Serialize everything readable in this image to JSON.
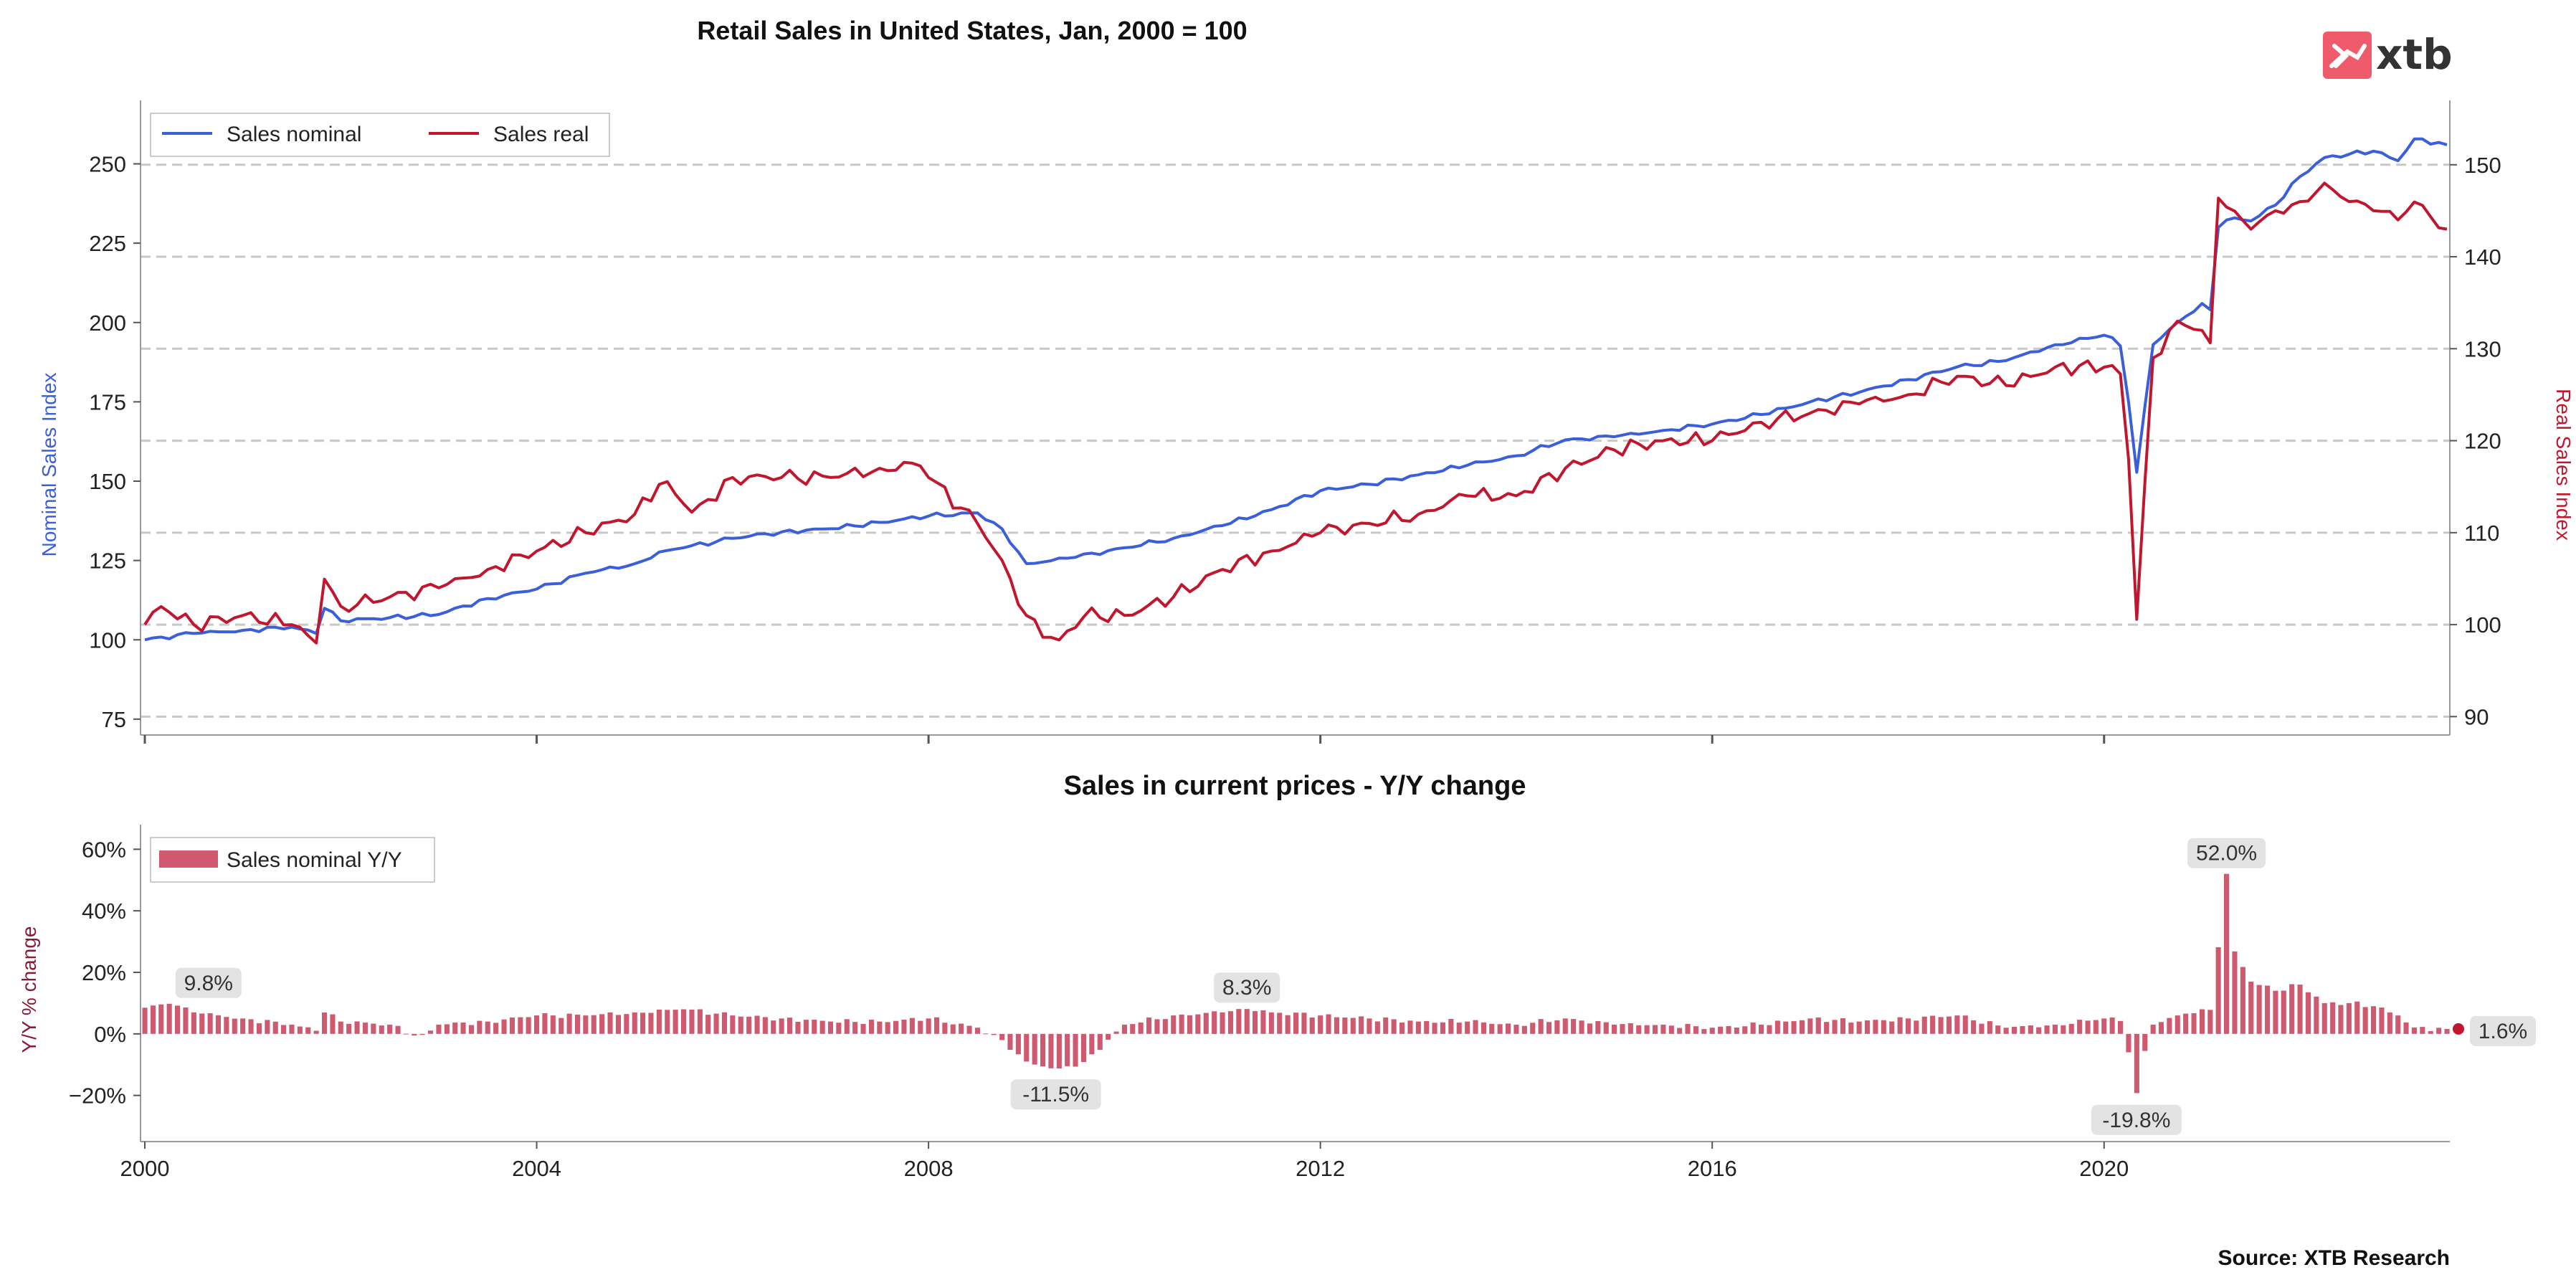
{
  "header": {
    "logo_text": "xtb"
  },
  "footer": {
    "source": "Source: XTB Research"
  },
  "chart_data": [
    {
      "type": "line",
      "title": "Retail Sales in United States, Jan, 2000 = 100",
      "ylabel_left": "Nominal Sales Index",
      "ylabel_right": "Real Sales Index",
      "left_axis": {
        "ylim": [
          70,
          270
        ],
        "ticks": [
          75,
          100,
          125,
          150,
          175,
          200,
          225,
          250
        ]
      },
      "right_axis": {
        "ylim": [
          88,
          157
        ],
        "ticks": [
          90,
          100,
          110,
          120,
          130,
          140,
          150
        ]
      },
      "x_start": "2000-01",
      "x_end": "2023-06",
      "x_ticks": [
        2000,
        2004,
        2008,
        2012,
        2016,
        2020
      ],
      "grid": "horizontal dashed",
      "legend": {
        "position": "top-left",
        "entries": [
          "Sales nominal",
          "Sales real"
        ]
      },
      "colors": {
        "nominal": "#3b5fd9",
        "real": "#c0172f"
      },
      "series": [
        {
          "name": "Sales nominal",
          "axis": "left",
          "interval": "monthly",
          "anchors": [
            [
              2000.0,
              100
            ],
            [
              2000.5,
              102
            ],
            [
              2001.0,
              103
            ],
            [
              2001.5,
              104
            ],
            [
              2001.75,
              102
            ],
            [
              2001.83,
              110
            ],
            [
              2002.0,
              106
            ],
            [
              2002.5,
              107
            ],
            [
              2003.0,
              108
            ],
            [
              2003.5,
              113
            ],
            [
              2004.0,
              116
            ],
            [
              2004.5,
              121
            ],
            [
              2005.0,
              124
            ],
            [
              2005.3,
              128
            ],
            [
              2005.5,
              129
            ],
            [
              2006.0,
              132
            ],
            [
              2006.5,
              134
            ],
            [
              2007.0,
              135
            ],
            [
              2007.5,
              137
            ],
            [
              2008.0,
              139
            ],
            [
              2008.5,
              140
            ],
            [
              2008.75,
              135
            ],
            [
              2009.0,
              124
            ],
            [
              2009.5,
              126
            ],
            [
              2010.0,
              129
            ],
            [
              2010.5,
              132
            ],
            [
              2011.0,
              136
            ],
            [
              2011.5,
              141
            ],
            [
              2012.0,
              147
            ],
            [
              2012.5,
              149
            ],
            [
              2013.0,
              152
            ],
            [
              2013.5,
              155
            ],
            [
              2014.0,
              158
            ],
            [
              2014.5,
              163
            ],
            [
              2015.0,
              164
            ],
            [
              2015.5,
              166
            ],
            [
              2016.0,
              168
            ],
            [
              2016.5,
              171
            ],
            [
              2017.0,
              175
            ],
            [
              2017.5,
              178
            ],
            [
              2018.0,
              182
            ],
            [
              2018.5,
              186
            ],
            [
              2019.0,
              188
            ],
            [
              2019.5,
              193
            ],
            [
              2020.0,
              196
            ],
            [
              2020.16,
              194
            ],
            [
              2020.25,
              175
            ],
            [
              2020.33,
              152
            ],
            [
              2020.5,
              193
            ],
            [
              2020.75,
              200
            ],
            [
              2021.0,
              206
            ],
            [
              2021.08,
              203
            ],
            [
              2021.17,
              231
            ],
            [
              2021.33,
              233
            ],
            [
              2021.5,
              232
            ],
            [
              2021.75,
              237
            ],
            [
              2022.0,
              246
            ],
            [
              2022.25,
              252
            ],
            [
              2022.5,
              253
            ],
            [
              2022.75,
              254
            ],
            [
              2023.0,
              251
            ],
            [
              2023.17,
              258
            ],
            [
              2023.5,
              256
            ]
          ]
        },
        {
          "name": "Sales real",
          "axis": "right",
          "interval": "monthly",
          "anchors": [
            [
              2000.0,
              100
            ],
            [
              2000.17,
              102
            ],
            [
              2000.5,
              100
            ],
            [
              2001.0,
              101
            ],
            [
              2001.5,
              100
            ],
            [
              2001.75,
              98
            ],
            [
              2001.83,
              105
            ],
            [
              2002.0,
              102
            ],
            [
              2002.5,
              103
            ],
            [
              2003.0,
              104
            ],
            [
              2003.5,
              106
            ],
            [
              2004.0,
              108
            ],
            [
              2004.5,
              110
            ],
            [
              2005.0,
              112
            ],
            [
              2005.3,
              116
            ],
            [
              2005.6,
              112
            ],
            [
              2006.0,
              116
            ],
            [
              2006.5,
              116
            ],
            [
              2007.0,
              116
            ],
            [
              2007.5,
              117
            ],
            [
              2007.9,
              117.5
            ],
            [
              2008.0,
              116
            ],
            [
              2008.5,
              111
            ],
            [
              2008.75,
              107
            ],
            [
              2009.0,
              101
            ],
            [
              2009.3,
              98
            ],
            [
              2009.6,
              101
            ],
            [
              2010.0,
              101
            ],
            [
              2010.5,
              103
            ],
            [
              2011.0,
              106
            ],
            [
              2011.5,
              108
            ],
            [
              2012.0,
              110
            ],
            [
              2012.5,
              111
            ],
            [
              2013.0,
              112
            ],
            [
              2013.5,
              114
            ],
            [
              2014.0,
              114
            ],
            [
              2014.5,
              117
            ],
            [
              2015.0,
              119
            ],
            [
              2015.5,
              120
            ],
            [
              2016.0,
              120
            ],
            [
              2016.5,
              122
            ],
            [
              2017.0,
              123
            ],
            [
              2017.5,
              124
            ],
            [
              2018.0,
              125
            ],
            [
              2018.5,
              127
            ],
            [
              2019.0,
              126
            ],
            [
              2019.5,
              128
            ],
            [
              2020.0,
              128
            ],
            [
              2020.16,
              128
            ],
            [
              2020.25,
              118
            ],
            [
              2020.33,
              100
            ],
            [
              2020.5,
              129
            ],
            [
              2020.75,
              133
            ],
            [
              2021.0,
              132
            ],
            [
              2021.08,
              130
            ],
            [
              2021.17,
              147
            ],
            [
              2021.33,
              145
            ],
            [
              2021.5,
              143
            ],
            [
              2021.75,
              145
            ],
            [
              2022.0,
              146
            ],
            [
              2022.25,
              148
            ],
            [
              2022.5,
              146
            ],
            [
              2022.75,
              145
            ],
            [
              2023.0,
              144
            ],
            [
              2023.17,
              146
            ],
            [
              2023.5,
              143
            ]
          ]
        }
      ]
    },
    {
      "type": "bar",
      "title": "Sales in current prices - Y/Y change",
      "ylabel": "Y/Y % change",
      "ylim": [
        -35,
        68
      ],
      "y_ticks": [
        -20,
        0,
        20,
        40,
        60
      ],
      "y_tick_labels": [
        "−20%",
        "0%",
        "20%",
        "40%",
        "60%"
      ],
      "x_ticks": [
        2000,
        2004,
        2008,
        2012,
        2016,
        2020
      ],
      "legend": {
        "position": "top-left",
        "entries": [
          "Sales nominal Y/Y"
        ]
      },
      "color": "#cf5a70",
      "series": [
        {
          "name": "Sales nominal Y/Y",
          "interval": "monthly",
          "anchors": [
            [
              2000.0,
              8.5
            ],
            [
              2000.25,
              9.8
            ],
            [
              2000.5,
              7
            ],
            [
              2001.0,
              5
            ],
            [
              2001.5,
              3
            ],
            [
              2001.75,
              1
            ],
            [
              2001.83,
              7
            ],
            [
              2002.0,
              4
            ],
            [
              2002.5,
              3
            ],
            [
              2002.8,
              -1
            ],
            [
              2003.0,
              3
            ],
            [
              2003.5,
              4
            ],
            [
              2004.0,
              6
            ],
            [
              2004.5,
              6
            ],
            [
              2005.0,
              7
            ],
            [
              2005.5,
              8
            ],
            [
              2006.0,
              6
            ],
            [
              2006.5,
              5
            ],
            [
              2007.0,
              4
            ],
            [
              2007.5,
              4
            ],
            [
              2008.0,
              5
            ],
            [
              2008.5,
              2
            ],
            [
              2008.75,
              -2
            ],
            [
              2009.0,
              -9
            ],
            [
              2009.3,
              -11.5
            ],
            [
              2009.6,
              -9
            ],
            [
              2010.0,
              3
            ],
            [
              2010.5,
              6
            ],
            [
              2011.0,
              7
            ],
            [
              2011.2,
              8.3
            ],
            [
              2011.5,
              7
            ],
            [
              2012.0,
              6
            ],
            [
              2012.5,
              5
            ],
            [
              2013.0,
              4
            ],
            [
              2013.5,
              4
            ],
            [
              2014.0,
              3
            ],
            [
              2014.5,
              5
            ],
            [
              2015.0,
              3
            ],
            [
              2015.5,
              3
            ],
            [
              2016.0,
              2
            ],
            [
              2016.5,
              3
            ],
            [
              2017.0,
              5
            ],
            [
              2017.5,
              4
            ],
            [
              2018.0,
              5
            ],
            [
              2018.5,
              6
            ],
            [
              2019.0,
              2
            ],
            [
              2019.5,
              3
            ],
            [
              2020.0,
              5
            ],
            [
              2020.16,
              5
            ],
            [
              2020.25,
              -6
            ],
            [
              2020.33,
              -19.8
            ],
            [
              2020.42,
              -5
            ],
            [
              2020.5,
              3
            ],
            [
              2020.75,
              6
            ],
            [
              2021.0,
              8
            ],
            [
              2021.08,
              7
            ],
            [
              2021.17,
              29
            ],
            [
              2021.25,
              52.0
            ],
            [
              2021.33,
              27
            ],
            [
              2021.5,
              17
            ],
            [
              2021.75,
              14
            ],
            [
              2022.0,
              16
            ],
            [
              2022.25,
              10
            ],
            [
              2022.5,
              10
            ],
            [
              2022.75,
              9
            ],
            [
              2023.0,
              6
            ],
            [
              2023.17,
              2
            ],
            [
              2023.5,
              1.6
            ]
          ]
        }
      ],
      "annotations": [
        "9.8%",
        "-11.5%",
        "8.3%",
        "-19.8%",
        "52.0%",
        "1.6%"
      ]
    }
  ]
}
